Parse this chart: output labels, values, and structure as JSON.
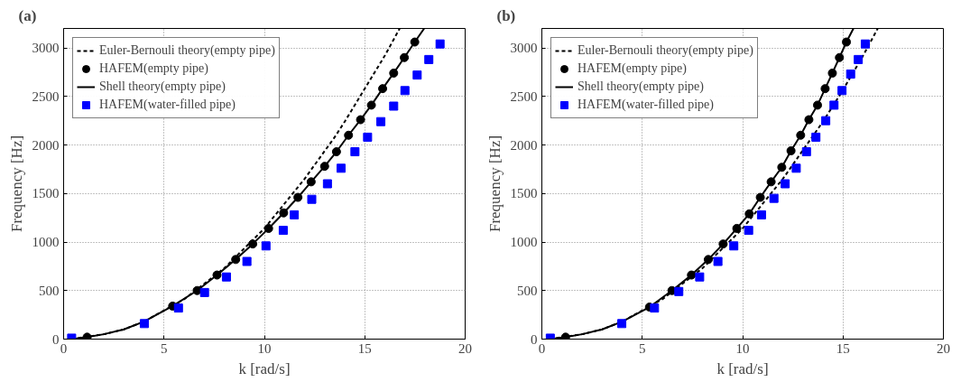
{
  "chart_data": [
    {
      "type": "line",
      "title": "(a)",
      "xlabel": "k [rad/s]",
      "ylabel": "Frequency [Hz]",
      "xlim": [
        0,
        20
      ],
      "ylim": [
        0,
        3200
      ],
      "xticks": [
        0,
        5,
        10,
        15,
        20
      ],
      "yticks": [
        0,
        500,
        1000,
        1500,
        2000,
        2500,
        3000
      ],
      "grid": true,
      "legend": "top left",
      "series": [
        {
          "name": "Euler-Bernouli theory(empty pipe)",
          "color": "#000000",
          "line_style": "dashed",
          "x": [
            0.4,
            2,
            3,
            4,
            6,
            8,
            10,
            12,
            13.5,
            14,
            16,
            16.74
          ],
          "values": [
            0,
            50,
            100,
            180,
            410,
            730,
            1140,
            1650,
            2080,
            2240,
            2920,
            3200
          ]
        },
        {
          "name": "HAFEM(empty pipe)",
          "type": "scatter",
          "color": "#000000",
          "marker": "circle",
          "x": [
            1.17,
            5.43,
            6.65,
            7.64,
            8.57,
            9.42,
            10.21,
            10.96,
            11.67,
            12.33,
            13.0,
            13.59,
            14.19,
            14.79,
            15.33,
            15.89,
            16.44,
            16.97,
            17.49
          ],
          "values": [
            20,
            340,
            500,
            660,
            820,
            980,
            1140,
            1300,
            1460,
            1620,
            1780,
            1930,
            2100,
            2260,
            2410,
            2580,
            2740,
            2900,
            3060
          ]
        },
        {
          "name": "Shell theory(empty pipe)",
          "color": "#000000",
          "line_style": "solid",
          "x": [
            0.4,
            1.17,
            2,
            3,
            4,
            5.43,
            6.65,
            7.64,
            8.57,
            9.42,
            10.21,
            10.96,
            11.67,
            12.33,
            13.0,
            13.59,
            14.19,
            14.79,
            15.33,
            15.89,
            16.44,
            16.97,
            17.49,
            17.96
          ],
          "values": [
            0,
            20,
            50,
            100,
            180,
            340,
            500,
            660,
            820,
            980,
            1140,
            1300,
            1460,
            1620,
            1780,
            1930,
            2100,
            2260,
            2410,
            2580,
            2740,
            2900,
            3060,
            3200
          ]
        },
        {
          "name": "HAFEM(water-filled pipe)",
          "type": "scatter",
          "color": "#0000ff",
          "marker": "square",
          "x": [
            0.4,
            4.02,
            5.72,
            7.02,
            8.11,
            9.13,
            10.08,
            10.94,
            11.49,
            12.36,
            13.14,
            13.82,
            14.51,
            15.14,
            15.8,
            16.44,
            17.0,
            17.61,
            18.19,
            18.75
          ],
          "values": [
            10,
            160,
            320,
            480,
            640,
            800,
            960,
            1120,
            1280,
            1440,
            1600,
            1760,
            1930,
            2080,
            2240,
            2400,
            2560,
            2720,
            2880,
            3040
          ]
        }
      ]
    },
    {
      "type": "line",
      "title": "(b)",
      "xlabel": "k [rad/s]",
      "ylabel": "Frequency [Hz]",
      "xlim": [
        0,
        20
      ],
      "ylim": [
        0,
        3200
      ],
      "xticks": [
        0,
        5,
        10,
        15,
        20
      ],
      "yticks": [
        0,
        500,
        1000,
        1500,
        2000,
        2500,
        3000
      ],
      "grid": true,
      "legend": "top left",
      "series": [
        {
          "name": "Euler-Bernouli theory(empty pipe)",
          "color": "#000000",
          "line_style": "dashed",
          "x": [
            0.4,
            2,
            3,
            4,
            6,
            8,
            10,
            12,
            14,
            14.95,
            16,
            16.73
          ],
          "values": [
            0,
            50,
            100,
            180,
            410,
            730,
            1140,
            1650,
            2240,
            2550,
            2920,
            3200
          ]
        },
        {
          "name": "HAFEM(empty pipe)",
          "type": "scatter",
          "color": "#000000",
          "marker": "circle",
          "x": [
            1.18,
            5.36,
            6.48,
            7.45,
            8.29,
            9.03,
            9.71,
            10.33,
            10.88,
            11.42,
            11.95,
            12.41,
            12.89,
            13.3,
            13.73,
            14.11,
            14.47,
            14.82,
            15.17
          ],
          "values": [
            20,
            330,
            500,
            660,
            820,
            980,
            1140,
            1290,
            1460,
            1620,
            1770,
            1940,
            2100,
            2260,
            2410,
            2580,
            2740,
            2900,
            3060
          ]
        },
        {
          "name": "Shell theory(empty pipe)",
          "color": "#000000",
          "line_style": "solid",
          "x": [
            0.4,
            1.18,
            2,
            3,
            4,
            5.36,
            6.48,
            7.45,
            8.29,
            9.03,
            9.71,
            10.33,
            10.88,
            11.42,
            11.95,
            12.41,
            12.89,
            13.3,
            13.73,
            14.11,
            14.47,
            14.82,
            15.17,
            15.52
          ],
          "values": [
            0,
            20,
            50,
            100,
            180,
            330,
            500,
            660,
            820,
            980,
            1140,
            1290,
            1460,
            1620,
            1770,
            1940,
            2100,
            2260,
            2410,
            2580,
            2740,
            2900,
            3060,
            3200
          ]
        },
        {
          "name": "HAFEM(water-filled pipe)",
          "type": "scatter",
          "color": "#0000ff",
          "marker": "square",
          "x": [
            0.42,
            3.98,
            5.61,
            6.82,
            7.86,
            8.77,
            9.56,
            10.3,
            10.94,
            11.56,
            12.12,
            12.67,
            13.18,
            13.65,
            14.14,
            14.55,
            14.95,
            15.38,
            15.76,
            16.11
          ],
          "values": [
            10,
            160,
            320,
            490,
            640,
            800,
            960,
            1120,
            1280,
            1450,
            1600,
            1760,
            1930,
            2080,
            2250,
            2410,
            2560,
            2730,
            2880,
            3040
          ]
        }
      ]
    }
  ]
}
